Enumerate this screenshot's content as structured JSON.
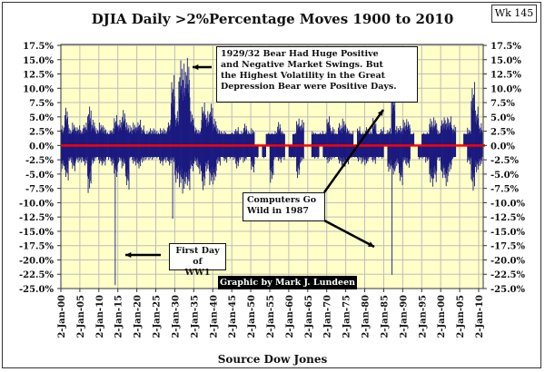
{
  "chart_data": {
    "type": "bar",
    "title": "DJIA Daily >2%Percentage Moves 1900 to 2010",
    "badge": "Wk 145",
    "xlabel": "Source Dow Jones",
    "credit": "Graphic by Mark J. Lundeen",
    "xlim": [
      1900,
      2011.2
    ],
    "ylim": [
      -25,
      17.5
    ],
    "y_ticks": [
      "17.5%",
      "15.0%",
      "12.5%",
      "10.0%",
      "7.5%",
      "5.0%",
      "2.5%",
      "0.0%",
      "-2.5%",
      "-5.0%",
      "-7.5%",
      "-10.0%",
      "-12.5%",
      "-15.0%",
      "-17.5%",
      "-20.0%",
      "-22.5%",
      "-25.0%"
    ],
    "x_ticks": [
      "2-Jan-00",
      "2-Jan-05",
      "2-Jan-10",
      "2-Jan-15",
      "2-Jan-20",
      "2-Jan-25",
      "2-Jan-30",
      "2-Jan-35",
      "2-Jan-40",
      "2-Jan-45",
      "2-Jan-50",
      "2-Jan-55",
      "2-Jan-60",
      "2-Jan-65",
      "2-Jan-70",
      "2-Jan-75",
      "2-Jan-80",
      "2-Jan-85",
      "2-Jan-90",
      "2-Jan-95",
      "2-Jan-00",
      "2-Jan-05",
      "2-Jan-10"
    ],
    "grid": true,
    "series_color": "#1a1a80",
    "zero_line_color": "#ff0000",
    "plot_background": "#ffffc8",
    "yearly_extremes": {
      "years_start": 1900,
      "max_up": [
        3.5,
        6.6,
        3,
        4,
        3.5,
        3,
        4,
        6.8,
        4.5,
        3,
        4,
        3.5,
        2.5,
        3,
        5.3,
        4.5,
        6.2,
        4,
        3.5,
        4,
        4.5,
        3.5,
        2.5,
        3,
        3,
        2.5,
        3,
        3,
        4.5,
        12.3,
        6,
        14.9,
        14.3,
        15.3,
        6,
        3.5,
        3,
        7.5,
        6,
        7.3,
        4.7,
        3,
        2.5,
        2.5,
        2.2,
        2.5,
        3.2,
        2.5,
        3.8,
        2.5,
        3,
        0,
        0,
        0,
        2.2,
        2.2,
        2.5,
        4.1,
        2.5,
        0,
        0,
        2.2,
        4.7,
        4.5,
        0,
        0,
        2.5,
        2.2,
        2.5,
        2.3,
        5.1,
        3.2,
        2.2,
        3.9,
        4.7,
        3.3,
        2.5,
        0,
        3.3,
        2.3,
        3.2,
        2.6,
        4.8,
        2.2,
        3.2,
        2.2,
        3,
        10.1,
        3.4,
        3.4,
        4.5,
        4.6,
        2.2,
        0,
        0,
        2.2,
        2.3,
        4.7,
        4.9,
        2.8,
        4.9,
        4.9,
        5.1,
        3.6,
        0,
        0,
        2.1,
        3.1,
        11.1,
        6.8,
        3.9
      ],
      "max_down": [
        -4.5,
        -6.1,
        -3,
        -4.5,
        -3,
        -3,
        -3.5,
        -8.3,
        -3.5,
        -2.5,
        -3.5,
        -3.5,
        -2.5,
        -3.5,
        -24.4,
        -3,
        -4,
        -7.7,
        -2.5,
        -3.5,
        -4,
        -3,
        -2.5,
        -2.5,
        -2.5,
        -2.5,
        -3.5,
        -3,
        -3.5,
        -12.8,
        -6.5,
        -7.3,
        -8.4,
        -7.8,
        -4.5,
        -3.5,
        -5,
        -7.8,
        -4.5,
        -6.9,
        -6.8,
        -3.5,
        -2.2,
        -3,
        -2.3,
        -2.5,
        -4,
        -2.5,
        -3,
        -2,
        -4.7,
        -2.2,
        0,
        -2.2,
        0,
        -6.5,
        -2.5,
        -3,
        -2.5,
        0,
        -2.2,
        -2.2,
        -5.7,
        -2.9,
        0,
        0,
        -2.3,
        -2.3,
        0,
        -2.2,
        -3.1,
        -2.5,
        -2.2,
        -3.5,
        -3.7,
        -3.3,
        -2.2,
        -2.1,
        -2.8,
        -3.2,
        -3.5,
        -2.5,
        -3.2,
        -2.2,
        -2.3,
        0,
        -4.6,
        -22.6,
        -4,
        -6.9,
        -3.2,
        -3.9,
        0,
        0,
        -2.4,
        -2.3,
        -3,
        -7.2,
        -6.4,
        -2.7,
        -5.7,
        -7.1,
        -4.6,
        -2.3,
        0,
        0,
        0,
        -3.3,
        -7.9,
        -4.7,
        -3.6
      ]
    },
    "annotations": [
      {
        "id": "depression",
        "text": [
          "1929/32 Bear Had Huge Positive",
          "and Negative Market Swings.  But",
          "the Highest Volatility in the Great",
          "Depression Bear were Positive Days."
        ]
      },
      {
        "id": "computers",
        "text": [
          "Computers Go",
          "Wild in 1987"
        ]
      },
      {
        "id": "ww1",
        "text": [
          "First Day of",
          "WW1"
        ]
      }
    ]
  }
}
